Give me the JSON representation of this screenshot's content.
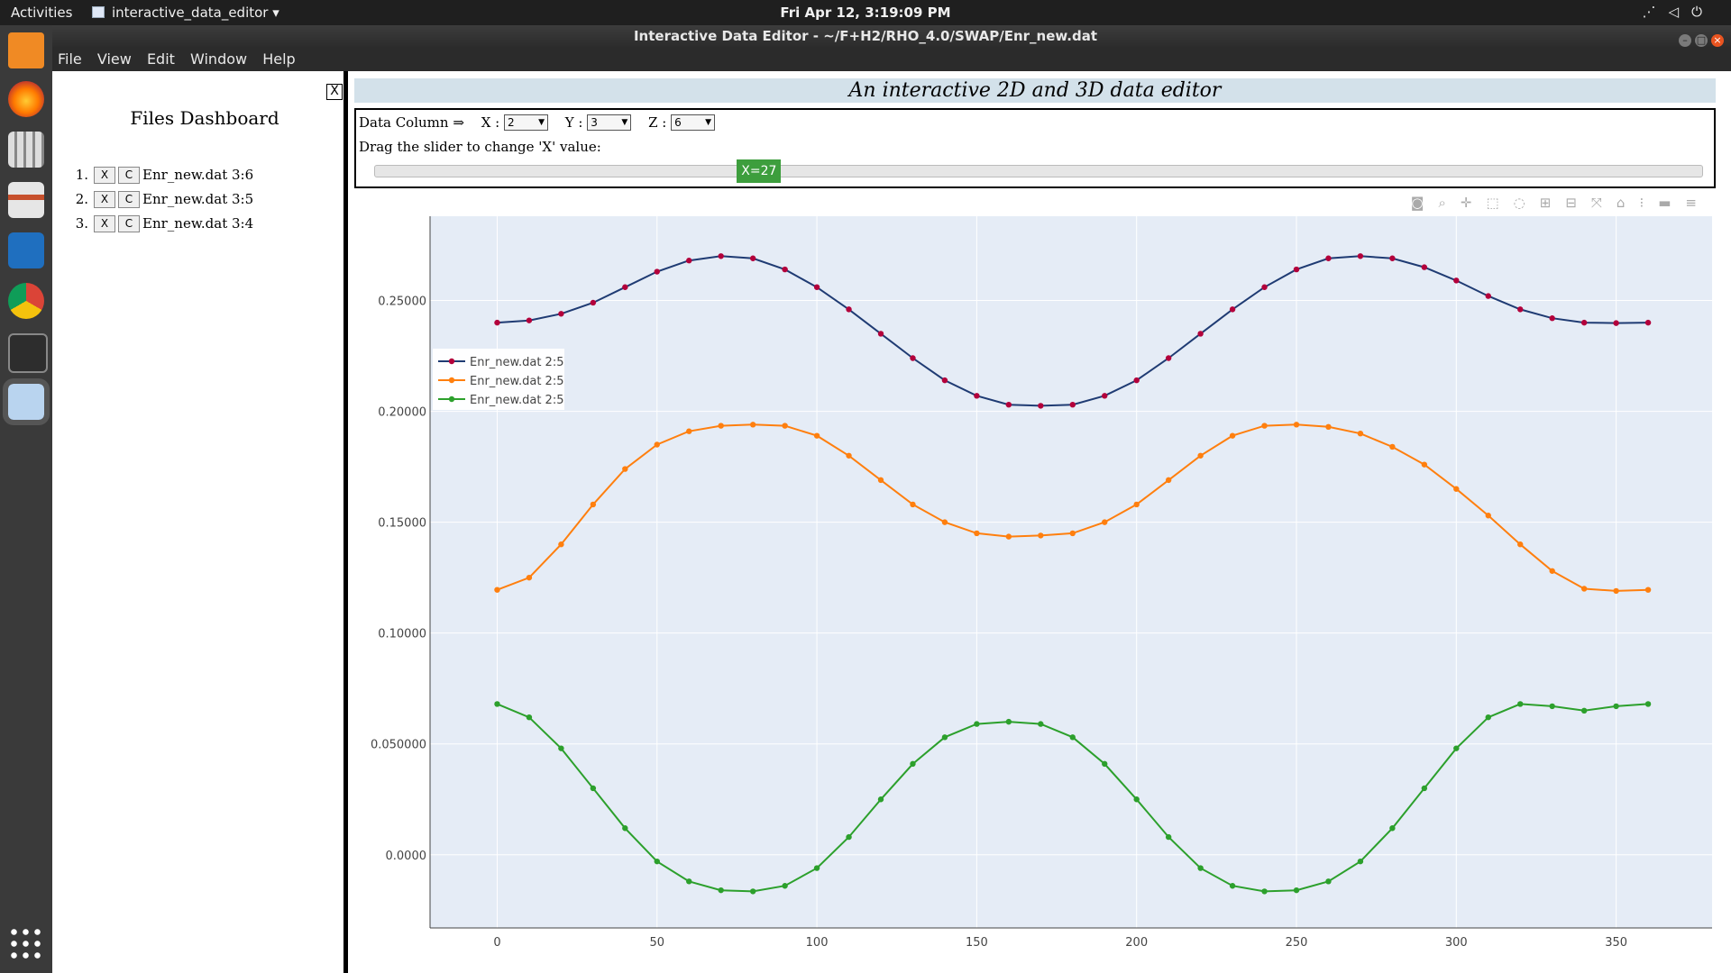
{
  "system_bar": {
    "activities": "Activities",
    "app_menu": "interactive_data_editor",
    "clock": "Fri Apr 12,  3:19:09 PM"
  },
  "window": {
    "title": "Interactive Data Editor - ~/F+H2/RHO_4.0/SWAP/Enr_new.dat"
  },
  "menu": [
    "File",
    "View",
    "Edit",
    "Window",
    "Help"
  ],
  "dashboard": {
    "title": "Files Dashboard",
    "close_glyph": "☒",
    "close_text": "X",
    "btn_x": "X",
    "btn_c": "C",
    "files": [
      {
        "num": "1.",
        "name": "Enr_new.dat 3:6"
      },
      {
        "num": "2.",
        "name": "Enr_new.dat 3:5"
      },
      {
        "num": "3.",
        "name": "Enr_new.dat 3:4"
      }
    ]
  },
  "editor": {
    "title": "An interactive 2D and 3D data editor",
    "data_column_label": "Data Column ⇒",
    "x_label": "X :",
    "x_value": "2",
    "y_label": "Y :",
    "y_value": "3",
    "z_label": "Z :",
    "z_value": "6",
    "slider_hint": "Drag the slider to change 'X' value:",
    "slider_label": "X=27",
    "slider_fraction": 0.29
  },
  "chart_data": {
    "type": "line",
    "xlim": [
      -21,
      380
    ],
    "ylim": [
      -0.033,
      0.288
    ],
    "x_ticks": [
      0,
      50,
      100,
      150,
      200,
      250,
      300,
      350
    ],
    "x_tick_labels": [
      "0",
      "50",
      "100",
      "150",
      "200",
      "250",
      "300",
      "350"
    ],
    "y_ticks": [
      0.0,
      0.05,
      0.1,
      0.15,
      0.2,
      0.25
    ],
    "y_tick_labels": [
      "0.0000",
      "0.050000",
      "0.10000",
      "0.15000",
      "0.20000",
      "0.25000"
    ],
    "grid": true,
    "legend_position": "top-left",
    "x": [
      0,
      10,
      20,
      30,
      40,
      50,
      60,
      70,
      80,
      90,
      100,
      110,
      120,
      130,
      140,
      150,
      160,
      170,
      180,
      190,
      200,
      210,
      220,
      230,
      240,
      250,
      260,
      270,
      280,
      290,
      300,
      310,
      320,
      330,
      340,
      350,
      360
    ],
    "series": [
      {
        "name": "Enr_new.dat 2:5",
        "color": "#1f3b73",
        "marker_color": "#b3003b",
        "values": [
          0.24,
          0.241,
          0.244,
          0.249,
          0.256,
          0.263,
          0.268,
          0.27,
          0.269,
          0.264,
          0.256,
          0.246,
          0.235,
          0.224,
          0.214,
          0.207,
          0.203,
          0.2025,
          0.203,
          0.207,
          0.214,
          0.224,
          0.235,
          0.246,
          0.256,
          0.264,
          0.269,
          0.27,
          0.269,
          0.265,
          0.259,
          0.252,
          0.246,
          0.242,
          0.24,
          0.2398,
          0.24
        ]
      },
      {
        "name": "Enr_new.dat 2:5",
        "color": "#ff7f0e",
        "marker_color": "#ff7f0e",
        "values": [
          0.1195,
          0.125,
          0.14,
          0.158,
          0.174,
          0.185,
          0.191,
          0.1935,
          0.194,
          0.1935,
          0.189,
          0.18,
          0.169,
          0.158,
          0.15,
          0.145,
          0.1435,
          0.144,
          0.145,
          0.15,
          0.158,
          0.169,
          0.18,
          0.189,
          0.1935,
          0.194,
          0.193,
          0.19,
          0.184,
          0.176,
          0.165,
          0.153,
          0.14,
          0.128,
          0.12,
          0.119,
          0.1195
        ]
      },
      {
        "name": "Enr_new.dat 2:5",
        "color": "#2ca02c",
        "marker_color": "#2ca02c",
        "values": [
          0.068,
          0.062,
          0.048,
          0.03,
          0.012,
          -0.003,
          -0.012,
          -0.016,
          -0.0165,
          -0.014,
          -0.006,
          0.008,
          0.025,
          0.041,
          0.053,
          0.059,
          0.06,
          0.059,
          0.053,
          0.041,
          0.025,
          0.008,
          -0.006,
          -0.014,
          -0.0165,
          -0.016,
          -0.012,
          -0.003,
          0.012,
          0.03,
          0.048,
          0.062,
          0.068,
          0.067,
          0.065,
          0.067,
          0.068
        ]
      }
    ]
  },
  "colors": {
    "plot_bg": "#e5ecf6",
    "slider_handle": "#3d9e3d",
    "title_bg": "#d3e1ea"
  },
  "icons": [
    "camera-icon",
    "zoom-icon",
    "pan-icon",
    "box-select-icon",
    "lasso-icon",
    "zoom-in-icon",
    "zoom-out-icon",
    "autoscale-icon",
    "home-icon",
    "spike-lines-icon",
    "hover-closest-icon",
    "hover-compare-icon"
  ]
}
